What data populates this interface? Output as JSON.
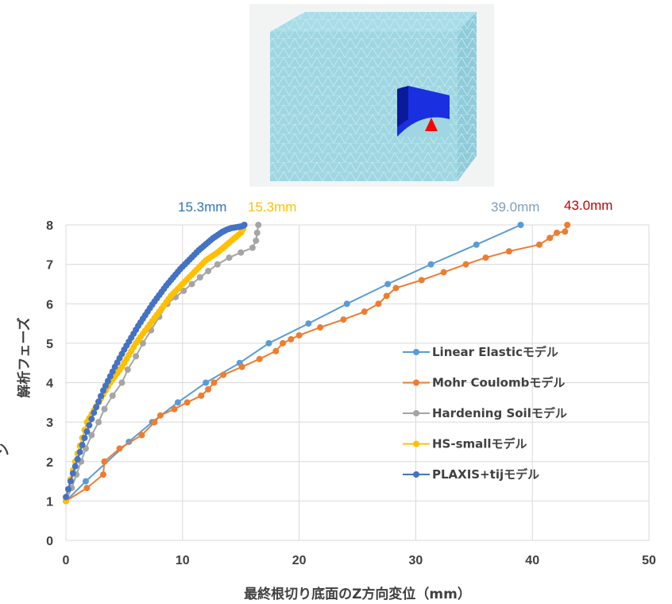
{
  "chart_data": {
    "type": "line",
    "xlabel": "最終根切り底面のZ方向変位（mm）",
    "ylabel": "解析フェーズ",
    "xlim": [
      0,
      50
    ],
    "ylim": [
      0,
      8
    ],
    "xticks": [
      "0",
      "10",
      "20",
      "30",
      "40",
      "50"
    ],
    "yticks": [
      "0",
      "1",
      "2",
      "3",
      "4",
      "5",
      "6",
      "7",
      "8"
    ],
    "grid": "vertical and horizontal",
    "legend_position": "right-middle",
    "series": [
      {
        "name": "Linear Elasticモデル",
        "color": "#5b9bd5",
        "x": [
          0.0,
          1.7,
          5.4,
          7.4,
          9.6,
          12.0,
          14.9,
          17.4,
          20.8,
          24.1,
          27.6,
          31.3,
          35.2,
          39.0
        ],
        "y": [
          1.0,
          1.5,
          2.5,
          3.0,
          3.5,
          4.0,
          4.5,
          5.0,
          5.5,
          6.0,
          6.5,
          7.0,
          7.5,
          8.0
        ]
      },
      {
        "name": "Mohr Coulombモデル",
        "color": "#ed7d31",
        "x": [
          0.0,
          1.8,
          3.2,
          3.3,
          4.6,
          6.5,
          7.6,
          8.1,
          9.3,
          10.4,
          11.6,
          12.2,
          12.7,
          13.5,
          15.1,
          16.6,
          18.0,
          18.6,
          19.3,
          20.0,
          21.8,
          23.8,
          25.6,
          26.8,
          27.5,
          28.3,
          30.5,
          32.4,
          34.3,
          36.0,
          38.0,
          40.6,
          41.5,
          42.1,
          42.8,
          43.0
        ],
        "y": [
          1.0,
          1.33,
          1.67,
          2.0,
          2.33,
          2.67,
          3.0,
          3.17,
          3.33,
          3.5,
          3.67,
          3.83,
          4.0,
          4.2,
          4.4,
          4.6,
          4.8,
          5.0,
          5.1,
          5.2,
          5.4,
          5.6,
          5.8,
          6.0,
          6.2,
          6.4,
          6.6,
          6.8,
          7.0,
          7.17,
          7.33,
          7.5,
          7.67,
          7.8,
          7.83,
          8.0
        ]
      },
      {
        "name": "Hardening Soilモデル",
        "color": "#a5a5a5",
        "x": [
          0.0,
          0.5,
          0.9,
          1.3,
          1.7,
          2.2,
          2.8,
          3.3,
          4.0,
          4.8,
          5.3,
          6.0,
          6.6,
          7.3,
          8.0,
          8.7,
          9.4,
          10.1,
          10.8,
          11.5,
          12.2,
          13.0,
          14.0,
          15.0,
          16.0,
          16.3,
          16.4,
          16.5
        ],
        "y": [
          1.0,
          1.33,
          1.67,
          2.0,
          2.33,
          2.67,
          3.0,
          3.33,
          3.67,
          4.0,
          4.33,
          4.67,
          5.0,
          5.33,
          5.67,
          6.0,
          6.17,
          6.33,
          6.5,
          6.67,
          6.83,
          7.0,
          7.17,
          7.3,
          7.42,
          7.6,
          7.8,
          8.0
        ]
      },
      {
        "name": "HS-smallモデル",
        "color": "#ffc000",
        "x": [
          0.0,
          0.2,
          0.4,
          0.6,
          0.8,
          1.0,
          1.2,
          1.4,
          1.6,
          1.8,
          2.0,
          2.2,
          2.4,
          2.6,
          2.8,
          3.0,
          3.2,
          3.4,
          3.6,
          3.8,
          4.0,
          4.2,
          4.4,
          4.6,
          4.8,
          5.0,
          5.2,
          5.4,
          5.6,
          5.8,
          6.0,
          6.2,
          6.4,
          6.6,
          6.8,
          7.0,
          7.2,
          7.4,
          7.6,
          7.8,
          8.0,
          8.2,
          8.4,
          8.6,
          8.8,
          9.0,
          9.2,
          9.4,
          9.6,
          9.8,
          10.0,
          10.2,
          10.4,
          10.6,
          10.8,
          11.0,
          11.2,
          11.4,
          11.6,
          11.8,
          12.0,
          12.2,
          12.4,
          12.6,
          12.8,
          13.0,
          13.2,
          13.4,
          13.6,
          13.8,
          14.0,
          14.2,
          14.4,
          14.6,
          14.8,
          15.0,
          15.1,
          15.2,
          15.3
        ],
        "y": [
          1.0,
          1.3,
          1.55,
          1.78,
          2.0,
          2.2,
          2.4,
          2.6,
          2.8,
          3.0,
          3.1,
          3.2,
          3.3,
          3.4,
          3.5,
          3.6,
          3.7,
          3.8,
          3.9,
          4.0,
          4.08,
          4.16,
          4.24,
          4.32,
          4.4,
          4.5,
          4.6,
          4.7,
          4.8,
          4.9,
          5.0,
          5.08,
          5.16,
          5.24,
          5.32,
          5.4,
          5.48,
          5.56,
          5.64,
          5.72,
          5.8,
          5.88,
          5.96,
          6.04,
          6.12,
          6.2,
          6.26,
          6.32,
          6.38,
          6.44,
          6.5,
          6.56,
          6.62,
          6.68,
          6.74,
          6.8,
          6.86,
          6.92,
          6.98,
          7.04,
          7.1,
          7.14,
          7.18,
          7.22,
          7.26,
          7.3,
          7.35,
          7.4,
          7.45,
          7.5,
          7.55,
          7.6,
          7.65,
          7.7,
          7.75,
          7.8,
          7.85,
          7.9,
          8.0
        ]
      },
      {
        "name": "PLAXIS+tijモデル",
        "color": "#4472c4",
        "x": [
          0.0,
          0.2,
          0.4,
          0.6,
          0.8,
          1.0,
          1.2,
          1.4,
          1.6,
          1.8,
          2.0,
          2.2,
          2.4,
          2.6,
          2.8,
          3.0,
          3.2,
          3.4,
          3.6,
          3.8,
          4.0,
          4.2,
          4.4,
          4.6,
          4.8,
          5.0,
          5.2,
          5.4,
          5.6,
          5.8,
          6.0,
          6.2,
          6.4,
          6.6,
          6.8,
          7.0,
          7.2,
          7.4,
          7.6,
          7.8,
          8.0,
          8.2,
          8.4,
          8.6,
          8.8,
          9.0,
          9.2,
          9.4,
          9.6,
          9.8,
          10.0,
          10.2,
          10.4,
          10.6,
          10.8,
          11.0,
          11.2,
          11.4,
          11.6,
          11.8,
          12.0,
          12.2,
          12.4,
          12.6,
          12.8,
          13.0,
          13.2,
          13.4,
          13.6,
          13.8,
          14.0,
          14.2,
          14.4,
          14.6,
          14.8,
          15.0,
          15.2,
          15.3
        ],
        "y": [
          1.1,
          1.3,
          1.5,
          1.7,
          1.88,
          2.06,
          2.24,
          2.42,
          2.6,
          2.76,
          2.92,
          3.08,
          3.24,
          3.38,
          3.52,
          3.66,
          3.8,
          3.92,
          4.04,
          4.16,
          4.28,
          4.4,
          4.51,
          4.62,
          4.73,
          4.84,
          4.94,
          5.04,
          5.14,
          5.24,
          5.34,
          5.44,
          5.53,
          5.62,
          5.71,
          5.8,
          5.89,
          5.98,
          6.06,
          6.14,
          6.22,
          6.3,
          6.38,
          6.46,
          6.53,
          6.6,
          6.67,
          6.74,
          6.81,
          6.88,
          6.94,
          7.0,
          7.06,
          7.12,
          7.18,
          7.24,
          7.3,
          7.36,
          7.41,
          7.46,
          7.51,
          7.56,
          7.61,
          7.66,
          7.7,
          7.74,
          7.78,
          7.82,
          7.85,
          7.88,
          7.9,
          7.92,
          7.93,
          7.94,
          7.95,
          7.96,
          7.98,
          8.0
        ]
      }
    ],
    "annotations": [
      {
        "text": "15.3mm",
        "color": "#2e75b6"
      },
      {
        "text": "15.3mm",
        "color": "#ffc000"
      },
      {
        "text": "39.0mm",
        "color": "#7f9fc0"
      },
      {
        "text": "43.0mm",
        "color": "#c00000"
      }
    ],
    "cropped_left_label": "ン"
  },
  "figure": {
    "description_icon": "excavation-model-3d-image",
    "marker_color": "#ff0000",
    "block_color": "#9fd8e4",
    "pit_color": "#1a2fe0"
  }
}
